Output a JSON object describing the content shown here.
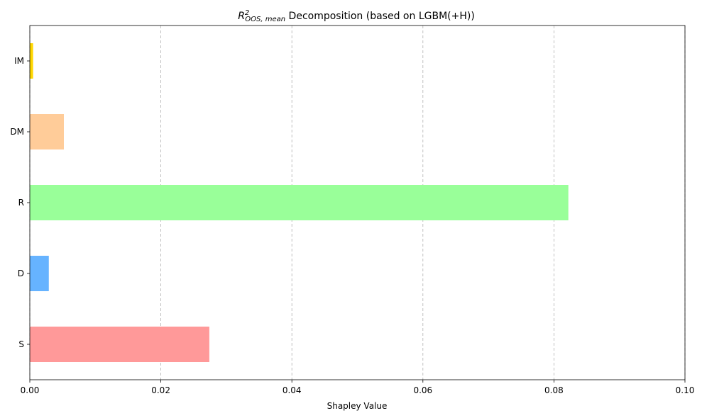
{
  "chart_data": {
    "type": "bar",
    "orientation": "horizontal",
    "title": {
      "main": "R",
      "superscript": "2",
      "subscript": "OOS, mean",
      "rest": " Decomposition (based on LGBM(+H))"
    },
    "xlabel": "Shapley Value",
    "ylabel": "",
    "xlim": [
      0.0,
      0.1
    ],
    "xticks": [
      0.0,
      0.02,
      0.04,
      0.06,
      0.08,
      0.1
    ],
    "xtick_labels": [
      "0.00",
      "0.02",
      "0.04",
      "0.06",
      "0.08",
      "0.10"
    ],
    "grid": {
      "axis": "x",
      "style": "dashed"
    },
    "categories": [
      "S",
      "D",
      "R",
      "DM",
      "IM"
    ],
    "values": [
      0.0274,
      0.0029,
      0.0822,
      0.0052,
      0.0005
    ],
    "colors": [
      "#ff9999",
      "#66b3ff",
      "#99ff99",
      "#ffcc99",
      "#ffd700"
    ]
  }
}
